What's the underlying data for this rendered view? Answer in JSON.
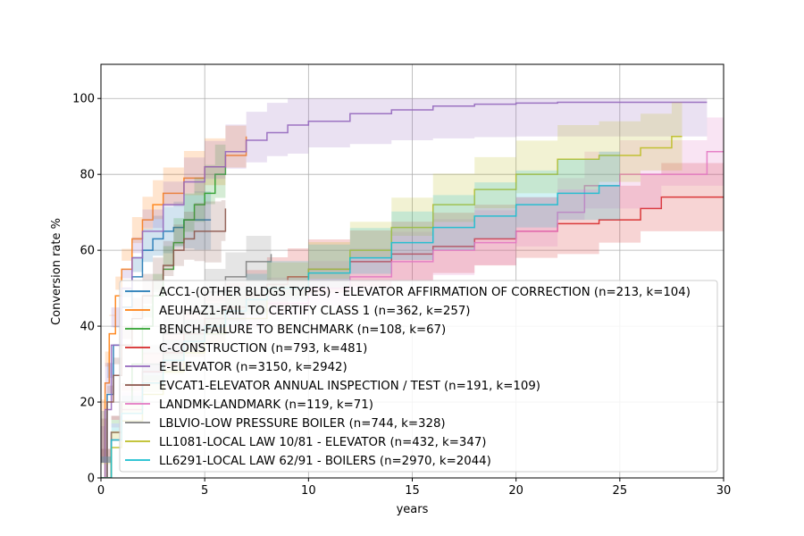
{
  "chart_data": {
    "type": "line",
    "xlabel": "years",
    "ylabel": "Conversion rate %",
    "xlim": [
      0,
      30
    ],
    "ylim": [
      0,
      109
    ],
    "xticks": [
      "0",
      "5",
      "10",
      "15",
      "20",
      "25",
      "30"
    ],
    "yticks": [
      "0",
      "20",
      "40",
      "60",
      "80",
      "100"
    ],
    "grid": true,
    "legend_position": "lower-right",
    "series": [
      {
        "name": "ACC1-(OTHER BLDGS TYPES) - ELEVATOR AFFIRMATION OF CORRECTION (n=213, k=104)",
        "color": "#1f77b4",
        "x": [
          0,
          0.3,
          0.6,
          1.0,
          1.5,
          2.0,
          2.5,
          3.0,
          3.5,
          4.0,
          4.5,
          5.3
        ],
        "y": [
          0,
          22,
          35,
          45,
          53,
          60,
          63,
          65,
          66,
          68,
          68,
          68
        ]
      },
      {
        "name": "AEUHAZ1-FAIL TO CERTIFY CLASS 1 (n=362, k=257)",
        "color": "#ff7f0e",
        "x": [
          0,
          0.2,
          0.4,
          0.7,
          1.0,
          1.5,
          2.0,
          2.5,
          3.0,
          4.0,
          5.0,
          6.0,
          7.0
        ],
        "y": [
          0,
          25,
          38,
          48,
          55,
          63,
          68,
          72,
          75,
          79,
          82,
          85,
          90
        ]
      },
      {
        "name": "BENCH-FAILURE TO BENCHMARK (n=108, k=67)",
        "color": "#2ca02c",
        "x": [
          0,
          0.5,
          1.0,
          1.5,
          2.0,
          2.5,
          3.0,
          3.5,
          4.0,
          4.5,
          5.0,
          5.5,
          6.0
        ],
        "y": [
          0,
          10,
          20,
          30,
          40,
          48,
          55,
          62,
          68,
          72,
          75,
          80,
          82
        ]
      },
      {
        "name": "C-CONSTRUCTION (n=793, k=481)",
        "color": "#d62728",
        "x": [
          0,
          0.5,
          1,
          2,
          3,
          4,
          5,
          6,
          7,
          8,
          9,
          10,
          12,
          14,
          16,
          18,
          20,
          22,
          24,
          26,
          27,
          28,
          30
        ],
        "y": [
          0,
          12,
          20,
          28,
          33,
          38,
          42,
          45,
          48,
          51,
          53,
          55,
          57,
          59,
          61,
          63,
          65,
          67,
          68,
          71,
          74,
          74,
          74
        ]
      },
      {
        "name": "E-ELEVATOR (n=3150, k=2942)",
        "color": "#9467bd",
        "x": [
          0,
          0.2,
          0.5,
          1.0,
          1.5,
          2.0,
          3.0,
          4.0,
          5.0,
          6.0,
          7.0,
          8.0,
          9.0,
          10,
          12,
          14,
          16,
          18,
          20,
          22,
          25,
          29.2
        ],
        "y": [
          0,
          18,
          35,
          50,
          58,
          65,
          72,
          78,
          82,
          86,
          89,
          91,
          93,
          94,
          96,
          97,
          98,
          98.5,
          98.8,
          99,
          99,
          99
        ]
      },
      {
        "name": "EVCAT1-ELEVATOR ANNUAL INSPECTION / TEST (n=191, k=109)",
        "color": "#8c564b",
        "x": [
          0,
          0.3,
          0.6,
          1.0,
          1.5,
          2.0,
          2.5,
          3.0,
          3.5,
          4.0,
          4.5,
          5.0,
          5.8,
          6.0
        ],
        "y": [
          0,
          20,
          27,
          35,
          42,
          48,
          52,
          56,
          60,
          63,
          65,
          65,
          65,
          71
        ]
      },
      {
        "name": "LANDMK-LANDMARK (n=119, k=71)",
        "color": "#e377c2",
        "x": [
          0,
          0.5,
          1,
          2,
          3,
          4,
          5,
          6,
          8,
          10,
          12,
          14,
          16,
          18,
          20,
          22,
          23.3,
          25,
          27,
          29.2,
          30
        ],
        "y": [
          0,
          10,
          18,
          25,
          30,
          35,
          38,
          42,
          46,
          50,
          53,
          57,
          60,
          62,
          65,
          70,
          77,
          80,
          80,
          86,
          86
        ]
      },
      {
        "name": "LBLVIO-LOW PRESSURE BOILER (n=744, k=328)",
        "color": "#7f7f7f",
        "x": [
          0,
          0.5,
          1,
          2,
          3,
          4,
          5,
          6,
          7,
          8.2
        ],
        "y": [
          0,
          12,
          20,
          30,
          38,
          44,
          49,
          53,
          57,
          59
        ]
      },
      {
        "name": "LL1081-LOCAL LAW 10/81 - ELEVATOR (n=432, k=347)",
        "color": "#bcbd22",
        "x": [
          0,
          0.5,
          1,
          2,
          3,
          4,
          5,
          6,
          8,
          10,
          12,
          14,
          16,
          18,
          20,
          22,
          24,
          26,
          27.5,
          28
        ],
        "y": [
          0,
          8,
          15,
          22,
          28,
          33,
          38,
          42,
          50,
          55,
          60,
          66,
          72,
          76,
          80,
          84,
          85,
          87,
          90,
          90
        ]
      },
      {
        "name": "LL6291-LOCAL LAW 62/91 - BOILERS (n=2970, k=2044)",
        "color": "#17becf",
        "x": [
          0,
          0.5,
          1,
          2,
          3,
          4,
          5,
          6,
          7,
          8,
          10,
          12,
          14,
          16,
          18,
          20,
          22,
          24,
          25
        ],
        "y": [
          0,
          10,
          17,
          25,
          31,
          36,
          40,
          44,
          47,
          50,
          54,
          58,
          62,
          66,
          69,
          72,
          75,
          77,
          77
        ]
      }
    ]
  }
}
